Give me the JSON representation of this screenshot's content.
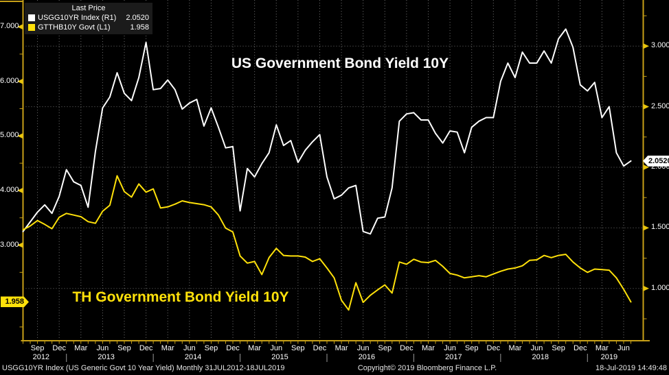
{
  "legend": {
    "title": "Last Price",
    "series": [
      {
        "label": "USGG10YR Index  (R1)",
        "value": "2.0520",
        "swatch_color": "#ffffff"
      },
      {
        "label": "GTTHB10Y Govt  (L1)",
        "value": "1.958",
        "swatch_color": "#ffe10a"
      }
    ]
  },
  "titles": {
    "us": "US Government Bond Yield 10Y",
    "th": "TH Government Bond Yield 10Y"
  },
  "axes": {
    "left_last_price": "1.958",
    "right_last_price": "2.0520"
  },
  "footer": {
    "left": "USGG10YR Index (US Generic Govt 10 Year Yield)  Monthly 31JUL2012-18JUL2019",
    "center": "Copyright© 2019 Bloomberg Finance L.P.",
    "right": "18-Jul-2019 14:49:48"
  },
  "colors": {
    "us_line": "#ffffff",
    "th_line": "#ffe10a",
    "axis": "#c7a017",
    "tick_arrow": "#e8c40c",
    "grid": "#6e6e6e"
  },
  "chart_data": {
    "type": "line",
    "title": "US Government Bond Yield 10Y",
    "subtitle": "TH Government Bond Yield 10Y",
    "period": "Monthly",
    "date_range": "31JUL2012-18JUL2019",
    "grid": "dotted",
    "x_monthly": [
      "2012-07",
      "2012-08",
      "2012-09",
      "2012-10",
      "2012-11",
      "2012-12",
      "2013-01",
      "2013-02",
      "2013-03",
      "2013-04",
      "2013-05",
      "2013-06",
      "2013-07",
      "2013-08",
      "2013-09",
      "2013-10",
      "2013-11",
      "2013-12",
      "2014-01",
      "2014-02",
      "2014-03",
      "2014-04",
      "2014-05",
      "2014-06",
      "2014-07",
      "2014-08",
      "2014-09",
      "2014-10",
      "2014-11",
      "2014-12",
      "2015-01",
      "2015-02",
      "2015-03",
      "2015-04",
      "2015-05",
      "2015-06",
      "2015-07",
      "2015-08",
      "2015-09",
      "2015-10",
      "2015-11",
      "2015-12",
      "2016-01",
      "2016-02",
      "2016-03",
      "2016-04",
      "2016-05",
      "2016-06",
      "2016-07",
      "2016-08",
      "2016-09",
      "2016-10",
      "2016-11",
      "2016-12",
      "2017-01",
      "2017-02",
      "2017-03",
      "2017-04",
      "2017-05",
      "2017-06",
      "2017-07",
      "2017-08",
      "2017-09",
      "2017-10",
      "2017-11",
      "2017-12",
      "2018-01",
      "2018-02",
      "2018-03",
      "2018-04",
      "2018-05",
      "2018-06",
      "2018-07",
      "2018-08",
      "2018-09",
      "2018-10",
      "2018-11",
      "2018-12",
      "2019-01",
      "2019-02",
      "2019-03",
      "2019-04",
      "2019-05",
      "2019-06",
      "2019-07"
    ],
    "series": [
      {
        "name": "USGG10YR Index",
        "legend": "USGG10YR Index (R1)",
        "axis": "right",
        "color": "#ffffff",
        "last": 2.052,
        "values": [
          1.47,
          1.55,
          1.63,
          1.69,
          1.62,
          1.76,
          1.98,
          1.88,
          1.85,
          1.67,
          2.13,
          2.49,
          2.58,
          2.78,
          2.61,
          2.55,
          2.74,
          3.03,
          2.64,
          2.65,
          2.72,
          2.64,
          2.48,
          2.53,
          2.56,
          2.34,
          2.49,
          2.33,
          2.16,
          2.17,
          1.64,
          1.99,
          1.92,
          2.03,
          2.12,
          2.35,
          2.18,
          2.22,
          2.04,
          2.14,
          2.21,
          2.27,
          1.92,
          1.74,
          1.77,
          1.83,
          1.85,
          1.47,
          1.45,
          1.58,
          1.59,
          1.83,
          2.38,
          2.44,
          2.45,
          2.39,
          2.39,
          2.28,
          2.2,
          2.3,
          2.29,
          2.12,
          2.33,
          2.38,
          2.41,
          2.41,
          2.71,
          2.86,
          2.74,
          2.95,
          2.86,
          2.86,
          2.96,
          2.86,
          3.06,
          3.14,
          2.99,
          2.68,
          2.63,
          2.7,
          2.41,
          2.5,
          2.12,
          2.01,
          2.052
        ]
      },
      {
        "name": "GTTHB10Y Govt",
        "legend": "GTTHB10Y Govt (L1)",
        "axis": "left",
        "color": "#ffe10a",
        "last": 1.958,
        "values": [
          3.28,
          3.35,
          3.45,
          3.38,
          3.3,
          3.51,
          3.58,
          3.55,
          3.52,
          3.43,
          3.4,
          3.62,
          3.73,
          4.27,
          3.98,
          3.88,
          4.12,
          3.97,
          4.03,
          3.68,
          3.7,
          3.75,
          3.81,
          3.78,
          3.76,
          3.74,
          3.7,
          3.55,
          3.31,
          3.24,
          2.8,
          2.67,
          2.7,
          2.46,
          2.77,
          2.94,
          2.81,
          2.8,
          2.8,
          2.78,
          2.7,
          2.75,
          2.58,
          2.4,
          1.99,
          1.81,
          2.31,
          1.95,
          2.08,
          2.18,
          2.27,
          2.12,
          2.69,
          2.65,
          2.74,
          2.69,
          2.68,
          2.72,
          2.61,
          2.48,
          2.45,
          2.4,
          2.42,
          2.44,
          2.42,
          2.47,
          2.52,
          2.56,
          2.58,
          2.62,
          2.72,
          2.73,
          2.81,
          2.77,
          2.81,
          2.83,
          2.69,
          2.58,
          2.5,
          2.56,
          2.55,
          2.54,
          2.4,
          2.19,
          1.958
        ]
      }
    ],
    "left_axis": {
      "ticks": [
        7,
        6,
        5,
        4,
        3
      ],
      "labels": [
        "7.000",
        "6.000",
        "5.000",
        "4.000",
        "3.000"
      ],
      "minor_step": 0.5,
      "visible_range": [
        1.25,
        7.49
      ]
    },
    "right_axis": {
      "ticks": [
        3,
        2.5,
        2,
        1.5,
        1
      ],
      "labels": [
        "3.0000",
        "2.5000",
        "2.0000",
        "1.5000",
        "1.0000"
      ],
      "minor_step": 0.25,
      "visible_range": [
        0.57,
        3.38
      ]
    }
  }
}
